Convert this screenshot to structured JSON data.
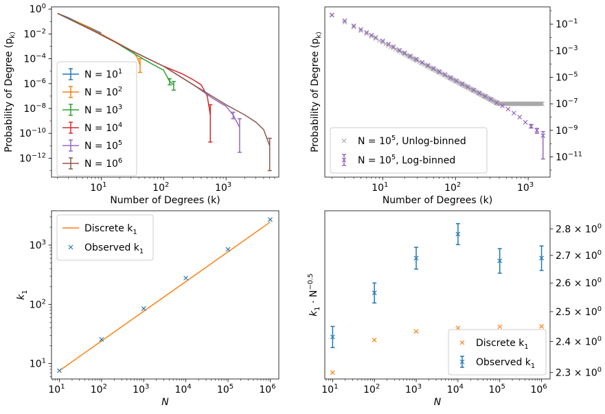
{
  "chart_data": [
    {
      "type": "line",
      "panel": "top-left",
      "xlabel": "Number of Degrees (k)",
      "ylabel": "Probability of Degree (p_k)",
      "xscale": "log",
      "yscale": "log",
      "xlim": [
        1.6,
        7000
      ],
      "ylim": [
        3e-14,
        1.5
      ],
      "xticks": [
        {
          "v": 10,
          "label": "10^1"
        },
        {
          "v": 100,
          "label": "10^2"
        },
        {
          "v": 1000,
          "label": "10^3"
        }
      ],
      "yticks": [
        {
          "v": 1,
          "label": "10^0"
        },
        {
          "v": 0.01,
          "label": "10^-2"
        },
        {
          "v": 0.0001,
          "label": "10^-4"
        },
        {
          "v": 1e-06,
          "label": "10^-6"
        },
        {
          "v": 1e-08,
          "label": "10^-8"
        },
        {
          "v": 1e-10,
          "label": "10^-10"
        },
        {
          "v": 1e-12,
          "label": "10^-12"
        }
      ],
      "legend": "center-left",
      "grid": false,
      "series": [
        {
          "name": "N = 10^1",
          "color": "#1f77b4",
          "x": [
            2,
            3,
            4,
            5,
            6,
            7,
            8,
            9,
            10
          ],
          "y": [
            0.45,
            0.2,
            0.1,
            0.06,
            0.04,
            0.028,
            0.02,
            0.015,
            0.012
          ]
        },
        {
          "name": "N = 10^2",
          "color": "#ff7f0e",
          "x": [
            2,
            3,
            5,
            8,
            12,
            18,
            25,
            32,
            38,
            42
          ],
          "y": [
            0.45,
            0.18,
            0.06,
            0.018,
            0.006,
            0.002,
            0.0008,
            0.0004,
            0.00012,
            3e-05
          ],
          "err_x": [
            42
          ],
          "err_lo": [
            8e-06
          ],
          "err_hi": [
            0.0001
          ]
        },
        {
          "name": "N = 10^3",
          "color": "#2ca02c",
          "x": [
            2,
            4,
            8,
            16,
            32,
            64,
            100,
            125,
            145
          ],
          "y": [
            0.45,
            0.09,
            0.015,
            0.0025,
            0.0003,
            4e-05,
            1.2e-05,
            1.5e-06,
            8e-07
          ],
          "err_x": [
            125,
            145
          ],
          "err_lo": [
            8e-07,
            3e-07
          ],
          "err_hi": [
            2.5e-06,
            1.5e-06
          ]
        },
        {
          "name": "N = 10^4",
          "color": "#d62728",
          "x": [
            2,
            8,
            32,
            100,
            200,
            300,
            400,
            500,
            560
          ],
          "y": [
            0.45,
            0.015,
            0.0004,
            2.5e-05,
            6e-06,
            2e-06,
            8e-07,
            1e-07,
            3e-09
          ],
          "err_x": [
            560
          ],
          "err_lo": [
            2e-11
          ],
          "err_hi": [
            2e-08
          ]
        },
        {
          "name": "N = 10^5",
          "color": "#9467bd",
          "x": [
            2,
            8,
            32,
            100,
            300,
            600,
            1000,
            1300,
            1650
          ],
          "y": [
            0.45,
            0.015,
            0.0004,
            2.5e-05,
            8e-07,
            7e-08,
            1.5e-08,
            3e-09,
            3e-10
          ],
          "err_x": [
            1300,
            1650
          ],
          "err_lo": [
            1.5e-09,
            3e-12
          ],
          "err_hi": [
            5e-09,
            1.5e-09
          ]
        },
        {
          "name": "N = 10^6",
          "color": "#8c564b",
          "x": [
            2,
            8,
            32,
            100,
            300,
            1000,
            2000,
            3000,
            4000,
            5000
          ],
          "y": [
            0.45,
            0.015,
            0.0004,
            2.5e-05,
            8e-07,
            2e-08,
            3e-09,
            8e-10,
            2e-10,
            1e-11
          ],
          "err_x": [
            5000
          ],
          "err_lo": [
            1e-13
          ],
          "err_hi": [
            4e-11
          ]
        }
      ]
    },
    {
      "type": "scatter",
      "panel": "top-right",
      "xlabel": "Number of Degrees (k)",
      "ylabel": "Probability of Degree (p_k)",
      "xscale": "log",
      "yscale": "log",
      "xlim": [
        1.6,
        2000
      ],
      "ylim": [
        3e-13,
        2
      ],
      "xticks": [
        {
          "v": 10,
          "label": "10^1"
        },
        {
          "v": 100,
          "label": "10^2"
        },
        {
          "v": 1000,
          "label": "10^3"
        }
      ],
      "yticks": [
        {
          "v": 0.1,
          "label": "10^-1"
        },
        {
          "v": 0.001,
          "label": "10^-3"
        },
        {
          "v": 1e-05,
          "label": "10^-5"
        },
        {
          "v": 1e-07,
          "label": "10^-7"
        },
        {
          "v": 1e-09,
          "label": "10^-9"
        },
        {
          "v": 1e-11,
          "label": "10^-11"
        }
      ],
      "yaxis_side": "right",
      "legend": "lower-left",
      "grid": false,
      "series": [
        {
          "name": "N = 10^5, Unlog-binned",
          "color": "#a9a9a9",
          "marker": "x",
          "pattern": "power-law",
          "x_range": [
            2,
            1600
          ],
          "y_at_2": 0.45,
          "exponent": -2.9,
          "floor": 1e-07
        },
        {
          "name": "N = 10^5, Log-binned",
          "color": "#9467bd",
          "marker": "x",
          "x": [
            2,
            3,
            4,
            5,
            6,
            7,
            8,
            10,
            12,
            14,
            17,
            20,
            24,
            29,
            35,
            42,
            50,
            60,
            72,
            86,
            103,
            124,
            148,
            178,
            213,
            256,
            307,
            368,
            442,
            530,
            636,
            763,
            916,
            1099,
            1319,
            1600
          ],
          "y": [
            0.5,
            0.18,
            0.075,
            0.04,
            0.024,
            0.015,
            0.01,
            0.0055,
            0.0032,
            0.002,
            0.0011,
            0.00068,
            0.0004,
            0.00023,
            0.00013,
            7.8e-05,
            4.6e-05,
            2.7e-05,
            1.6e-05,
            9.2e-06,
            5.4e-06,
            3.2e-06,
            1.9e-06,
            1.1e-06,
            6.5e-07,
            3.7e-07,
            2.2e-07,
            1.2e-07,
            7e-08,
            4e-08,
            2e-08,
            1e-08,
            4e-09,
            2e-09,
            1e-09,
            4e-10
          ],
          "err_x": [
            1099,
            1319,
            1600
          ],
          "err_lo": [
            1.5e-09,
            6e-10,
            7e-12
          ],
          "err_hi": [
            2.8e-09,
            1.4e-09,
            8e-10
          ]
        }
      ]
    },
    {
      "type": "scatter",
      "panel": "bottom-left",
      "xlabel": "N",
      "ylabel": "k_1",
      "xscale": "log",
      "yscale": "log",
      "xlim": [
        6.5,
        1600000
      ],
      "ylim": [
        5.5,
        3800
      ],
      "xticks": [
        {
          "v": 10,
          "label": "10^1"
        },
        {
          "v": 100,
          "label": "10^2"
        },
        {
          "v": 1000,
          "label": "10^3"
        },
        {
          "v": 10000,
          "label": "10^4"
        },
        {
          "v": 100000,
          "label": "10^5"
        },
        {
          "v": 1000000,
          "label": "10^6"
        }
      ],
      "yticks": [
        {
          "v": 10,
          "label": "10^1"
        },
        {
          "v": 100,
          "label": "10^2"
        },
        {
          "v": 1000,
          "label": "10^3"
        }
      ],
      "legend": "upper-left",
      "grid": false,
      "series": [
        {
          "name": "Discrete k_1",
          "color": "#ff7f0e",
          "marker": "line",
          "x": [
            10,
            1000000
          ],
          "y": [
            7.6,
            2450
          ]
        },
        {
          "name": "Observed k_1",
          "color": "#1f77b4",
          "marker": "x",
          "x": [
            10,
            100,
            1000,
            10000,
            100000,
            1000000
          ],
          "y": [
            7.6,
            25.6,
            85,
            278,
            850,
            2700
          ]
        }
      ]
    },
    {
      "type": "scatter",
      "panel": "bottom-right",
      "xlabel": "N",
      "ylabel": "k_1 · N^-0.5",
      "xscale": "log",
      "yscale": "log",
      "xlim": [
        6.5,
        1600000
      ],
      "ylim": [
        2.28,
        2.87
      ],
      "xticks": [
        {
          "v": 10,
          "label": "10^1"
        },
        {
          "v": 100,
          "label": "10^2"
        },
        {
          "v": 1000,
          "label": "10^3"
        },
        {
          "v": 10000,
          "label": "10^4"
        },
        {
          "v": 100000,
          "label": "10^5"
        },
        {
          "v": 1000000,
          "label": "10^6"
        }
      ],
      "yticks": [
        {
          "v": 2.3,
          "label": "2.3 × 10^0"
        },
        {
          "v": 2.4,
          "label": "2.4 × 10^0"
        },
        {
          "v": 2.5,
          "label": "2.5 × 10^0"
        },
        {
          "v": 2.6,
          "label": "2.6 × 10^0"
        },
        {
          "v": 2.7,
          "label": "2.7 × 10^0"
        },
        {
          "v": 2.8,
          "label": "2.8 × 10^0"
        }
      ],
      "yaxis_side": "right",
      "legend": "lower-right",
      "grid": false,
      "series": [
        {
          "name": "Discrete k_1",
          "color": "#ff7f0e",
          "marker": "x",
          "x": [
            10,
            100,
            1000,
            10000,
            100000,
            1000000
          ],
          "y": [
            2.3,
            2.405,
            2.433,
            2.445,
            2.449,
            2.45
          ]
        },
        {
          "name": "Observed k_1",
          "color": "#1f77b4",
          "marker": "x",
          "x": [
            10,
            100,
            1000,
            10000,
            100000,
            1000000
          ],
          "y": [
            2.415,
            2.565,
            2.69,
            2.78,
            2.68,
            2.69
          ],
          "err": [
            0.035,
            0.035,
            0.04,
            0.04,
            0.045,
            0.045
          ]
        }
      ]
    }
  ]
}
